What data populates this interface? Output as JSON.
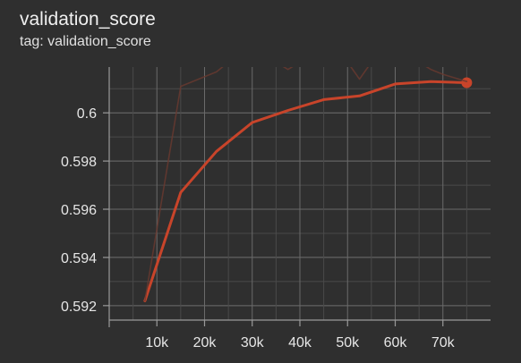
{
  "card": {
    "title": "validation_score",
    "tag": "tag: validation_score"
  },
  "chart_data": {
    "type": "line",
    "title": "validation_score",
    "xlabel": "",
    "ylabel": "",
    "xlim": [
      0,
      80000
    ],
    "ylim": [
      0.5914,
      0.6019
    ],
    "grid": true,
    "x_ticks": [
      10000,
      20000,
      30000,
      40000,
      50000,
      60000,
      70000
    ],
    "x_tick_labels": [
      "10k",
      "20k",
      "30k",
      "40k",
      "50k",
      "60k",
      "70k"
    ],
    "y_ticks": [
      0.592,
      0.594,
      0.596,
      0.598,
      0.6
    ],
    "y_tick_labels": [
      "0.592",
      "0.594",
      "0.596",
      "0.598",
      "0.6"
    ],
    "series": [
      {
        "role": "smoothed",
        "color": "#c8442a",
        "x": [
          7500,
          15000,
          22500,
          30000,
          37500,
          45000,
          52500,
          60000,
          67500,
          75000
        ],
        "y": [
          0.5922,
          0.5967,
          0.5984,
          0.5996,
          0.6001,
          0.60055,
          0.6007,
          0.6012,
          0.6013,
          0.60125
        ]
      },
      {
        "role": "raw",
        "color": "#6a3a30",
        "x": [
          7500,
          15000,
          22500,
          25000,
          35000,
          37500,
          40000,
          50000,
          52500,
          55000,
          65000,
          67500,
          70000,
          75000
        ],
        "y": [
          0.5922,
          0.6011,
          0.6017,
          0.6021,
          0.6021,
          0.6018,
          0.6021,
          0.6021,
          0.6014,
          0.6021,
          0.6021,
          0.6018,
          0.6016,
          0.6013
        ]
      }
    ]
  }
}
